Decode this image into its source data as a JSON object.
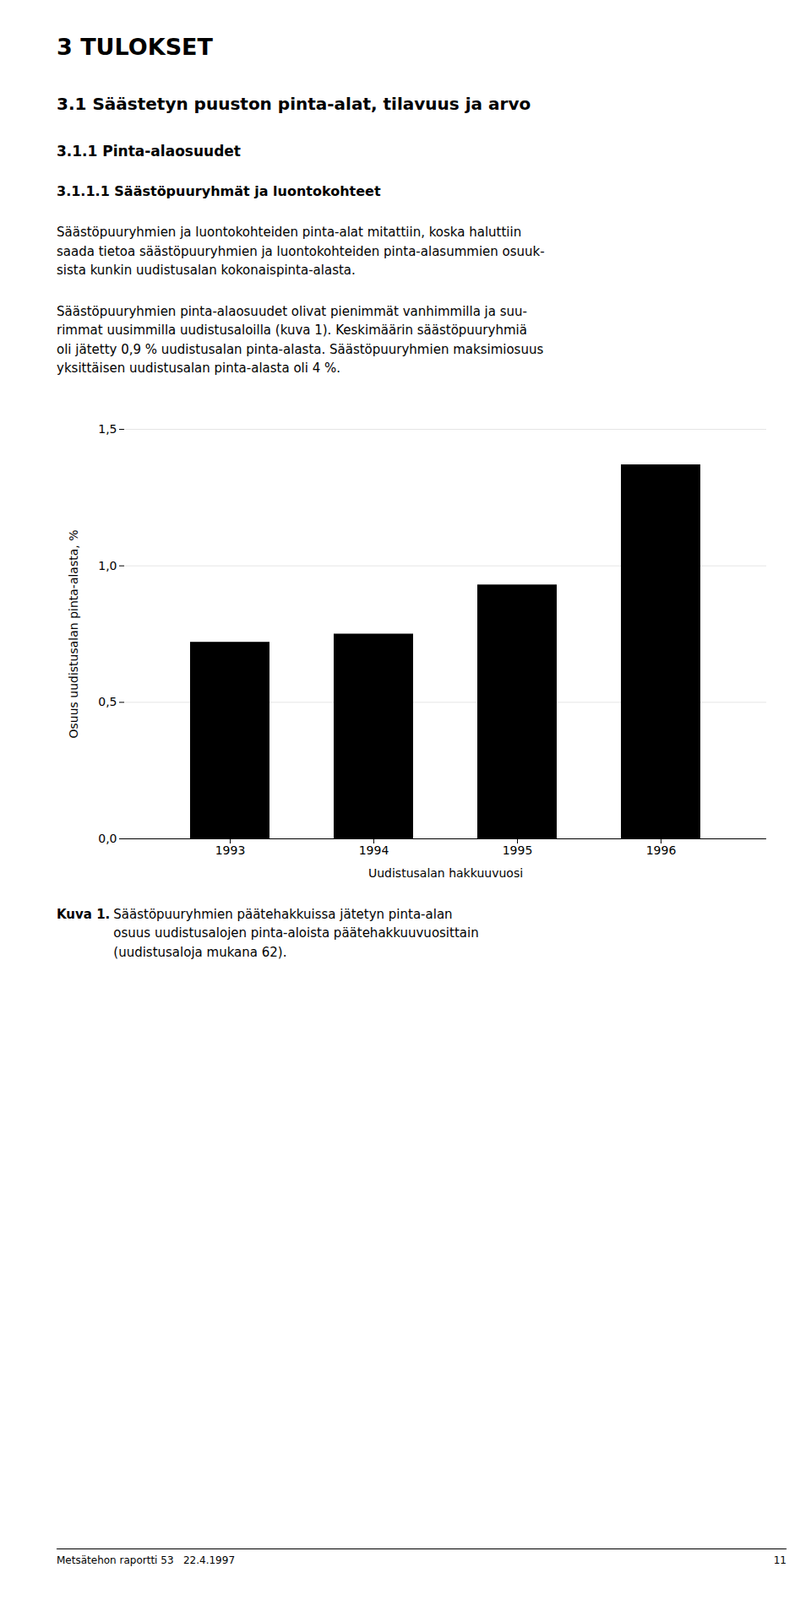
{
  "chart_data": {
    "type": "bar",
    "annotations": [
      "3 TULOKSET",
      "3.1 Säästetyn puuston pinta-alat, tilavuus ja arvo",
      "3.1.1 Pinta-alaosuudet",
      "3.1.1.1 Säästöpuuryhmät ja luontokohteet",
      "Säästöpuuryhmien ja luontokohteiden pinta-alat mitattiin, koska haluttiin\nsaada tietoa säästöpuuryhmien ja luontokohteiden pinta-alasummien osuuk-\nsista kunkin uudistusalan kokonaispinta-alasta.",
      "Säästöpuuryhmien pinta-alaosuudet olivat pienimmät vanhimmilla ja suu-\nrimmat uusimmilla uudistusaloilla (kuva 1). Keskimäärin säästöpuuryhmiä\noli jätetty 0,9 % uudistusalan pinta-alasta. Säästöpuuryhmien maksimiosuus\nyksittäisen uudistusalan pinta-alasta oli 4 %.",
      "Kuva 1.",
      "Säästöpuuryhmien päätehakkuissa jätetyn pinta-alan\nosuus uudistusalojen pinta-aloista päätehakkuuvuosittain\n(uudistusaloja mukana 62).",
      "Metsätehon raportti 53   22.4.1997",
      "11"
    ],
    "categories": [
      "1993",
      "1994",
      "1995",
      "1996"
    ],
    "values": [
      0.72,
      0.75,
      0.93,
      1.37
    ],
    "color": "#000000",
    "xlabel": "Uudistusalan hakkuuvuosi",
    "ylabel": "Osuus uudistusalan pinta-alasta, %",
    "ylim": [
      0.0,
      1.5
    ],
    "yticks": [
      {
        "value": 0.0,
        "label": "0,0"
      },
      {
        "value": 0.5,
        "label": "0,5"
      },
      {
        "value": 1.0,
        "label": "1,0"
      },
      {
        "value": 1.5,
        "label": "1,5"
      }
    ],
    "grid": true
  }
}
